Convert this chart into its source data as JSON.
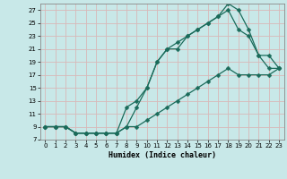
{
  "xlabel": "Humidex (Indice chaleur)",
  "bg_color": "#c8e8e8",
  "grid_color": "#d8b8b8",
  "line_color": "#1a6b5a",
  "xlim": [
    -0.5,
    23.5
  ],
  "ylim": [
    7,
    28
  ],
  "xticks": [
    0,
    1,
    2,
    3,
    4,
    5,
    6,
    7,
    8,
    9,
    10,
    11,
    12,
    13,
    14,
    15,
    16,
    17,
    18,
    19,
    20,
    21,
    22,
    23
  ],
  "yticks": [
    7,
    9,
    11,
    13,
    15,
    17,
    19,
    21,
    23,
    25,
    27
  ],
  "line1_x": [
    0,
    1,
    2,
    3,
    4,
    5,
    6,
    7,
    8,
    9,
    10,
    11,
    12,
    13,
    14,
    15,
    16,
    17,
    18,
    19,
    20,
    21,
    22,
    23
  ],
  "line1_y": [
    9,
    9,
    9,
    8,
    8,
    8,
    8,
    8,
    12,
    13,
    15,
    19,
    21,
    21,
    23,
    24,
    25,
    26,
    28,
    27,
    24,
    20,
    18,
    18
  ],
  "line2_x": [
    0,
    1,
    2,
    3,
    4,
    5,
    6,
    7,
    8,
    9,
    10,
    11,
    12,
    13,
    14,
    15,
    16,
    17,
    18,
    19,
    20,
    21,
    22,
    23
  ],
  "line2_y": [
    9,
    9,
    9,
    8,
    8,
    8,
    8,
    8,
    9,
    12,
    15,
    19,
    21,
    22,
    23,
    24,
    25,
    26,
    27,
    24,
    23,
    20,
    20,
    18
  ],
  "line3_x": [
    0,
    1,
    2,
    3,
    4,
    5,
    6,
    7,
    8,
    9,
    10,
    11,
    12,
    13,
    14,
    15,
    16,
    17,
    18,
    19,
    20,
    21,
    22,
    23
  ],
  "line3_y": [
    9,
    9,
    9,
    8,
    8,
    8,
    8,
    8,
    9,
    9,
    10,
    11,
    12,
    13,
    14,
    15,
    16,
    17,
    18,
    17,
    17,
    17,
    17,
    18
  ]
}
